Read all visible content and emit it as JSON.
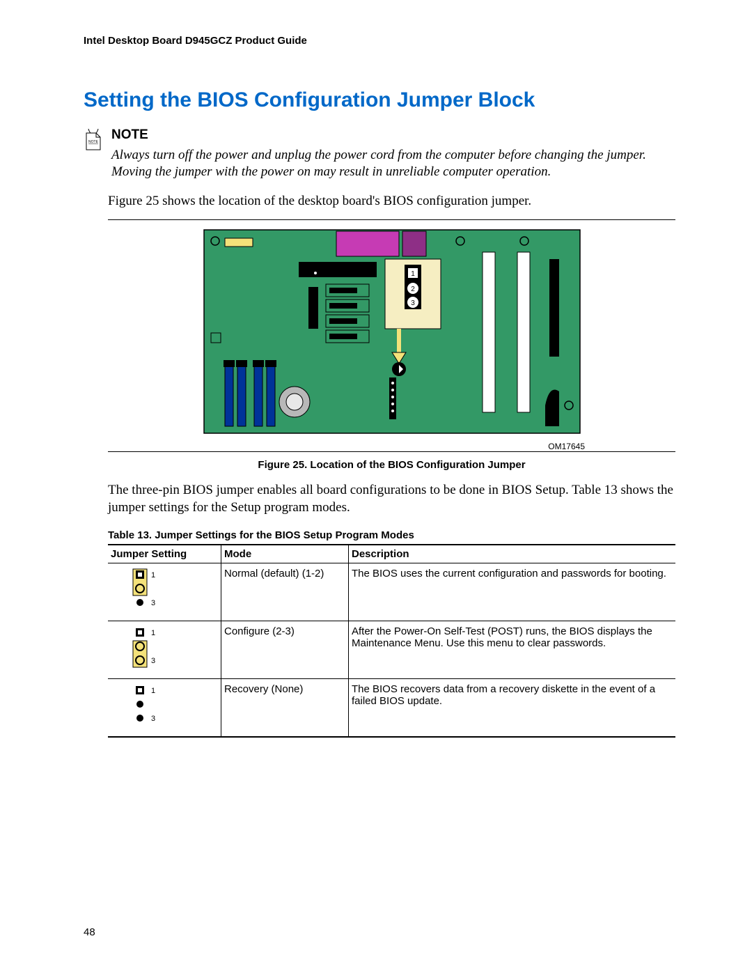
{
  "header": "Intel Desktop Board D945GCZ Product Guide",
  "section_title": "Setting the BIOS Configuration Jumper Block",
  "note": {
    "label": "NOTE",
    "body": "Always turn off the power and unplug the power cord from the computer before changing the jumper.  Moving the jumper with the power on may result in unreliable computer operation."
  },
  "para1": "Figure 25 shows the location of the desktop board's BIOS configuration jumper.",
  "figure": {
    "om_label": "OM17645",
    "caption": "Figure 25.  Location of the BIOS Configuration Jumper",
    "colors": {
      "board": "#339966",
      "board_border": "#000000",
      "magenta": "#c63bb4",
      "magenta2": "#8e2f86",
      "yellow": "#f4e27a",
      "black": "#000000",
      "white": "#ffffff",
      "grey": "#808080",
      "blue": "#003399",
      "orange": "#ff9933"
    }
  },
  "para2": "The three-pin BIOS jumper enables all board configurations to be done in BIOS Setup.  Table 13 shows the jumper settings for the Setup program modes.",
  "table": {
    "caption": "Table 13.    Jumper Settings for the BIOS Setup Program Modes",
    "columns": [
      "Jumper Setting",
      "Mode",
      "Description"
    ],
    "rows": [
      {
        "mode": "Normal (default) (1-2)",
        "desc": "The BIOS uses the current configuration and passwords for booting.",
        "pins": {
          "p1": "square",
          "p2": "circle",
          "p3": "dot",
          "cover": [
            1,
            2
          ]
        }
      },
      {
        "mode": "Configure (2-3)",
        "desc": "After the Power-On Self-Test (POST) runs, the BIOS displays the Maintenance Menu.  Use this menu to clear passwords.",
        "pins": {
          "p1": "square",
          "p2": "circle",
          "p3": "circle",
          "cover": [
            2,
            3
          ]
        }
      },
      {
        "mode": "Recovery (None)",
        "desc": "The BIOS recovers data from a recovery diskette in the event of a failed BIOS update.",
        "pins": {
          "p1": "square",
          "p2": "dot",
          "p3": "dot",
          "cover": null
        }
      }
    ]
  },
  "page_number": "48"
}
